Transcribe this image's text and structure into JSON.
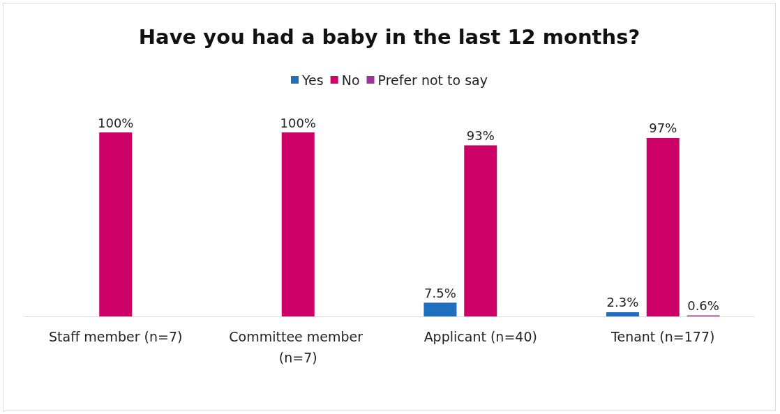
{
  "chart_data": {
    "type": "bar",
    "title": "Have you had a baby in the last 12 months?",
    "categories": [
      "Staff member (n=7)",
      "Committee member (n=7)",
      "Applicant (n=40)",
      "Tenant (n=177)"
    ],
    "series": [
      {
        "name": "Yes",
        "color": "#1f6fc0",
        "values": [
          null,
          null,
          7.5,
          2.3
        ],
        "value_labels": [
          null,
          null,
          "7.5%",
          "2.3%"
        ]
      },
      {
        "name": "No",
        "color": "#cc0066",
        "values": [
          100,
          100,
          93,
          97
        ],
        "value_labels": [
          "100%",
          "100%",
          "93%",
          "97%"
        ]
      },
      {
        "name": "Prefer not to say",
        "color": "#a0309a",
        "values": [
          null,
          null,
          null,
          0.6
        ],
        "value_labels": [
          null,
          null,
          null,
          "0.6%"
        ]
      }
    ],
    "legend": "top"
  }
}
